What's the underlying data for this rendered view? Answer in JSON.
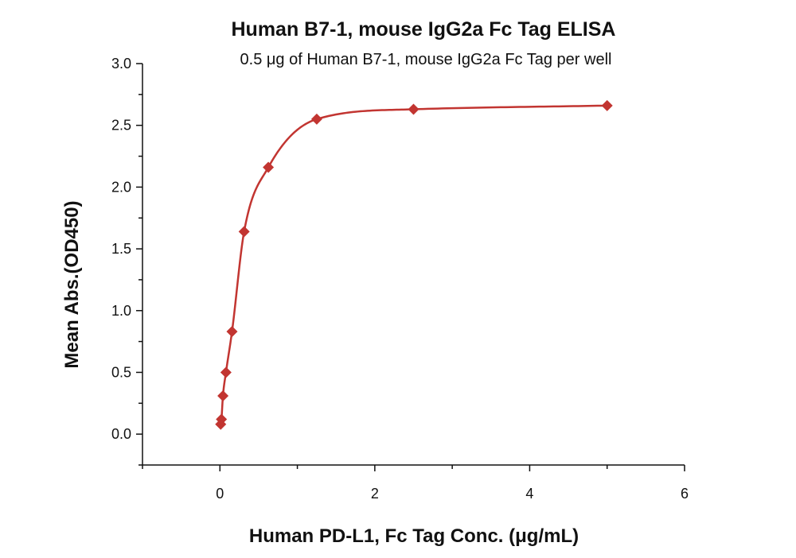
{
  "chart_data": {
    "type": "scatter",
    "title": "Human B7-1, mouse IgG2a Fc Tag ELISA",
    "subtitle": "0.5 μg of Human B7-1, mouse IgG2a Fc Tag per well",
    "xlabel": "Human PD-L1, Fc Tag Conc. (μg/mL)",
    "ylabel": "Mean Abs.(OD450)",
    "xlim": [
      -1,
      6
    ],
    "ylim": [
      -0.25,
      3.0
    ],
    "x_ticks": [
      0,
      2,
      4,
      6
    ],
    "x_tick_labels": [
      "0",
      "2",
      "4",
      "6"
    ],
    "y_ticks": [
      0.0,
      0.5,
      1.0,
      1.5,
      2.0,
      2.5,
      3.0
    ],
    "y_tick_labels": [
      "0.0",
      "0.5",
      "1.0",
      "1.5",
      "2.0",
      "2.5",
      "3.0"
    ],
    "grid": false,
    "series": [
      {
        "color": "#c23531",
        "marker": "diamond",
        "x": [
          0.0098,
          0.0195,
          0.039,
          0.078,
          0.156,
          0.3125,
          0.625,
          1.25,
          2.5,
          5.0
        ],
        "y": [
          0.08,
          0.12,
          0.31,
          0.5,
          0.83,
          1.64,
          2.16,
          2.55,
          2.63,
          2.66
        ],
        "fit": {
          "type": "curve",
          "color": "#c23531"
        }
      }
    ]
  }
}
